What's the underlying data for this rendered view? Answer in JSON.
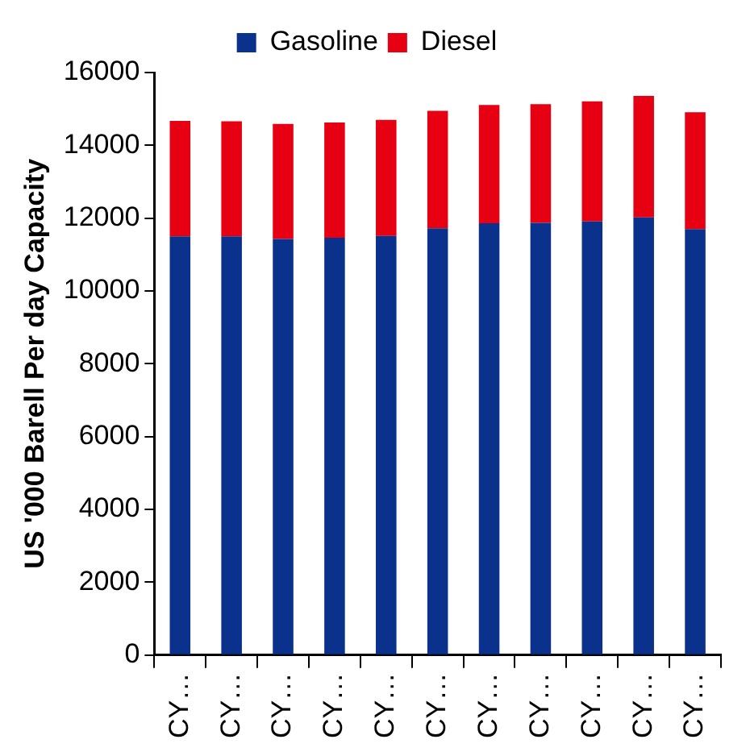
{
  "chart_data": {
    "type": "bar",
    "stacked": true,
    "ylabel": "US '000 Barell Per day Capacity",
    "categories": [
      "CY…",
      "CY…",
      "CY…",
      "CY…",
      "CY…",
      "CY…",
      "CY…",
      "CY…",
      "CY…",
      "CY…",
      "CY…"
    ],
    "series": [
      {
        "name": "Gasoline",
        "color": "#0a318c",
        "values": [
          11500,
          11500,
          11430,
          11460,
          11510,
          11720,
          11860,
          11870,
          11910,
          12020,
          11700
        ]
      },
      {
        "name": "Diesel",
        "color": "#e60012",
        "values": [
          3170,
          3160,
          3160,
          3170,
          3190,
          3230,
          3250,
          3260,
          3300,
          3340,
          3210
        ]
      }
    ],
    "ylim": [
      0,
      16000
    ],
    "yticks": [
      0,
      2000,
      4000,
      6000,
      8000,
      10000,
      12000,
      14000,
      16000
    ],
    "grid": false,
    "legend": "top"
  }
}
